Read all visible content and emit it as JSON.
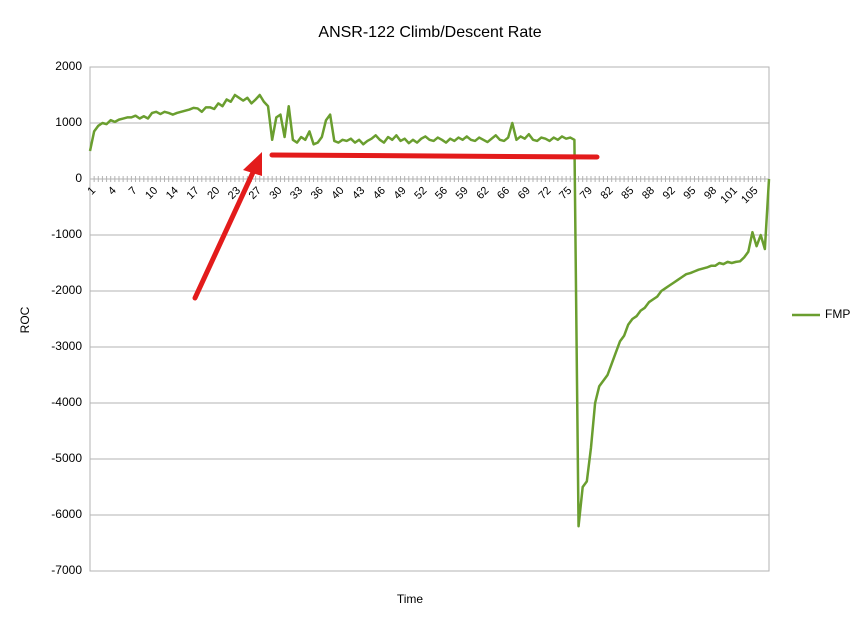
{
  "chart_data": {
    "type": "line",
    "title": "ANSR-122 Climb/Descent Rate",
    "x_label": "Time",
    "y_label": "ROC",
    "categories": [
      1,
      null,
      null,
      null,
      null,
      4,
      null,
      null,
      null,
      null,
      7,
      null,
      null,
      null,
      null,
      10,
      null,
      null,
      null,
      null,
      14,
      null,
      null,
      null,
      null,
      17,
      null,
      null,
      null,
      null,
      20,
      null,
      null,
      null,
      null,
      23,
      null,
      null,
      null,
      null,
      27,
      null,
      null,
      null,
      null,
      30,
      null,
      null,
      null,
      null,
      33,
      null,
      null,
      null,
      null,
      36,
      null,
      null,
      null,
      null,
      40,
      null,
      null,
      null,
      null,
      43,
      null,
      null,
      null,
      null,
      46,
      null,
      null,
      null,
      null,
      49,
      null,
      null,
      null,
      null,
      52,
      null,
      null,
      null,
      null,
      56,
      null,
      null,
      null,
      null,
      59,
      null,
      null,
      null,
      null,
      62,
      null,
      null,
      null,
      null,
      66,
      null,
      null,
      null,
      null,
      69,
      null,
      null,
      null,
      null,
      72,
      null,
      null,
      null,
      null,
      75,
      null,
      null,
      null,
      null,
      79,
      null,
      null,
      null,
      null,
      82,
      null,
      null,
      null,
      null,
      85,
      null,
      null,
      null,
      null,
      88,
      null,
      null,
      null,
      null,
      92,
      null,
      null,
      null,
      null,
      95,
      null,
      null,
      null,
      null,
      98,
      null,
      null,
      null,
      null,
      101,
      null,
      null,
      null,
      null,
      105,
      null,
      null,
      null,
      null
    ],
    "series": [
      {
        "name": "FMP",
        "color": "#6a9e2f",
        "values": [
          500,
          850,
          950,
          1000,
          980,
          1050,
          1020,
          1060,
          1080,
          1100,
          1100,
          1130,
          1080,
          1120,
          1080,
          1180,
          1200,
          1160,
          1200,
          1180,
          1150,
          1180,
          1200,
          1220,
          1240,
          1270,
          1260,
          1200,
          1280,
          1280,
          1250,
          1350,
          1300,
          1420,
          1380,
          1500,
          1450,
          1400,
          1450,
          1350,
          1420,
          1500,
          1380,
          1300,
          700,
          1100,
          1150,
          750,
          1300,
          700,
          650,
          750,
          700,
          850,
          620,
          650,
          750,
          1050,
          1150,
          680,
          650,
          700,
          680,
          720,
          650,
          700,
          620,
          680,
          720,
          780,
          700,
          650,
          750,
          700,
          780,
          680,
          720,
          640,
          700,
          650,
          720,
          760,
          700,
          680,
          740,
          700,
          650,
          720,
          680,
          740,
          700,
          760,
          700,
          680,
          740,
          700,
          660,
          720,
          780,
          700,
          680,
          740,
          1000,
          700,
          760,
          720,
          800,
          700,
          680,
          740,
          720,
          680,
          740,
          700,
          760,
          720,
          740,
          700,
          -6200,
          -5500,
          -5400,
          -4800,
          -4000,
          -3700,
          -3600,
          -3500,
          -3300,
          -3100,
          -2900,
          -2800,
          -2600,
          -2500,
          -2450,
          -2350,
          -2300,
          -2200,
          -2150,
          -2100,
          -2000,
          -1950,
          -1900,
          -1850,
          -1800,
          -1750,
          -1700,
          -1680,
          -1650,
          -1620,
          -1600,
          -1580,
          -1550,
          -1550,
          -1500,
          -1520,
          -1480,
          -1500,
          -1480,
          -1470,
          -1400,
          -1300,
          -950,
          -1200,
          -1000,
          -1250,
          0
        ]
      }
    ],
    "ylim": [
      -7000,
      2000
    ],
    "yticks": [
      -7000,
      -6000,
      -5000,
      -4000,
      -3000,
      -2000,
      -1000,
      0,
      1000,
      2000
    ],
    "grid": true,
    "legend": "right"
  }
}
